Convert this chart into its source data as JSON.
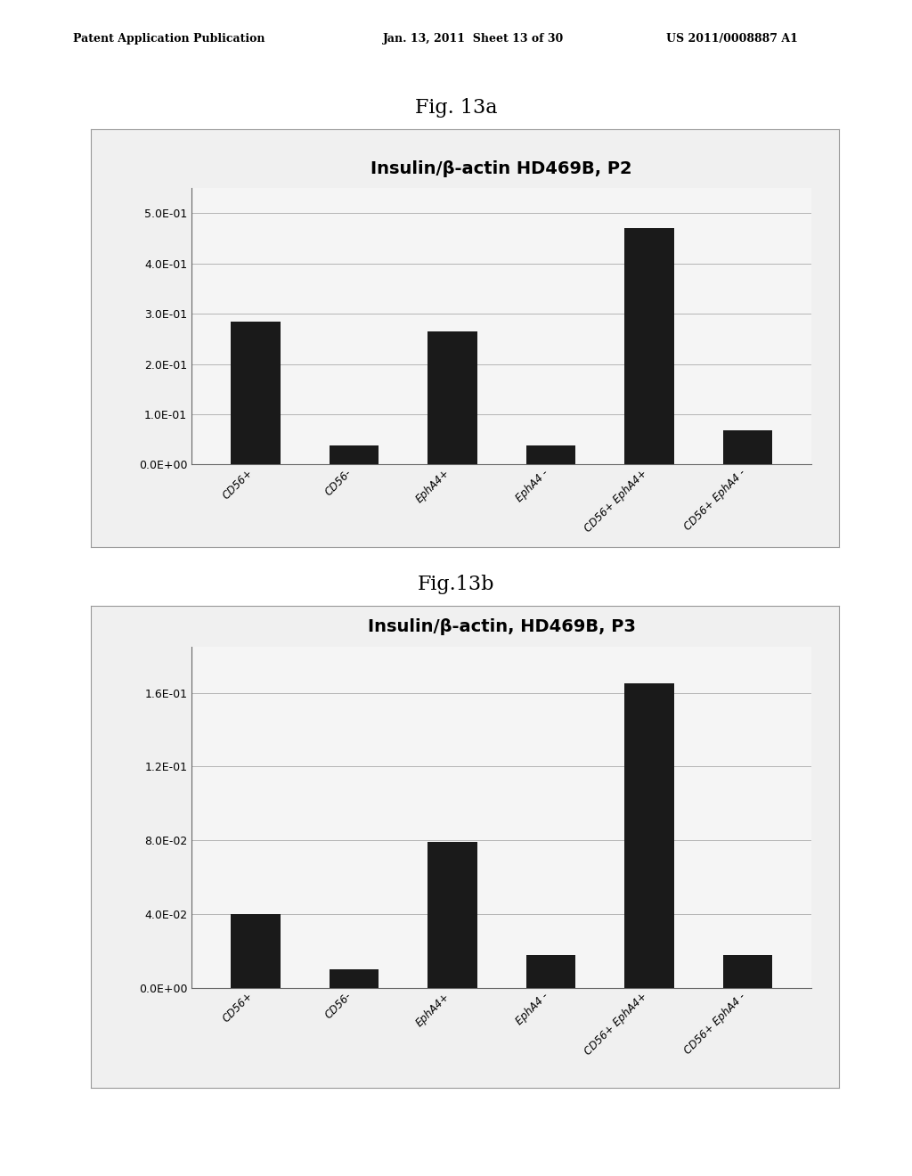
{
  "fig1": {
    "title": "Insulin/β-actin HD469B, P2",
    "categories": [
      "CD56+",
      "CD56-",
      "EphA4+",
      "EphA4 -",
      "CD56+ EphA4+",
      "CD56+ EphA4 -"
    ],
    "values": [
      0.285,
      0.038,
      0.265,
      0.038,
      0.47,
      0.068
    ],
    "ylim": [
      0,
      0.55
    ],
    "yticks": [
      0.0,
      0.1,
      0.2,
      0.3,
      0.4,
      0.5
    ],
    "ytick_labels": [
      "0.0E+00",
      "1.0E-01",
      "2.0E-01",
      "3.0E-01",
      "4.0E-01",
      "5.0E-01"
    ]
  },
  "fig2": {
    "title": "Insulin/β-actin, HD469B, P3",
    "categories": [
      "CD56+",
      "CD56-",
      "EphA4+",
      "EphA4 -",
      "CD56+ EphA4+",
      "CD56+ EphA4 -"
    ],
    "values": [
      0.04,
      0.01,
      0.079,
      0.018,
      0.165,
      0.018
    ],
    "ylim": [
      0,
      0.185
    ],
    "yticks": [
      0.0,
      0.04,
      0.08,
      0.12,
      0.16
    ],
    "ytick_labels": [
      "0.0E+00",
      "4.0E-02",
      "8.0E-02",
      "1.2E-01",
      "1.6E-01"
    ]
  },
  "bar_color": "#1a1a1a",
  "bar_width": 0.5,
  "fig_caption1": "Fig. 13a",
  "fig_caption2": "Fig.13b",
  "header_left": "Patent Application Publication",
  "header_mid": "Jan. 13, 2011  Sheet 13 of 30",
  "header_right": "US 2011/0008887 A1",
  "title_fontsize": 14,
  "tick_fontsize": 9,
  "xtick_fontsize": 8.5,
  "caption_fontsize": 16
}
